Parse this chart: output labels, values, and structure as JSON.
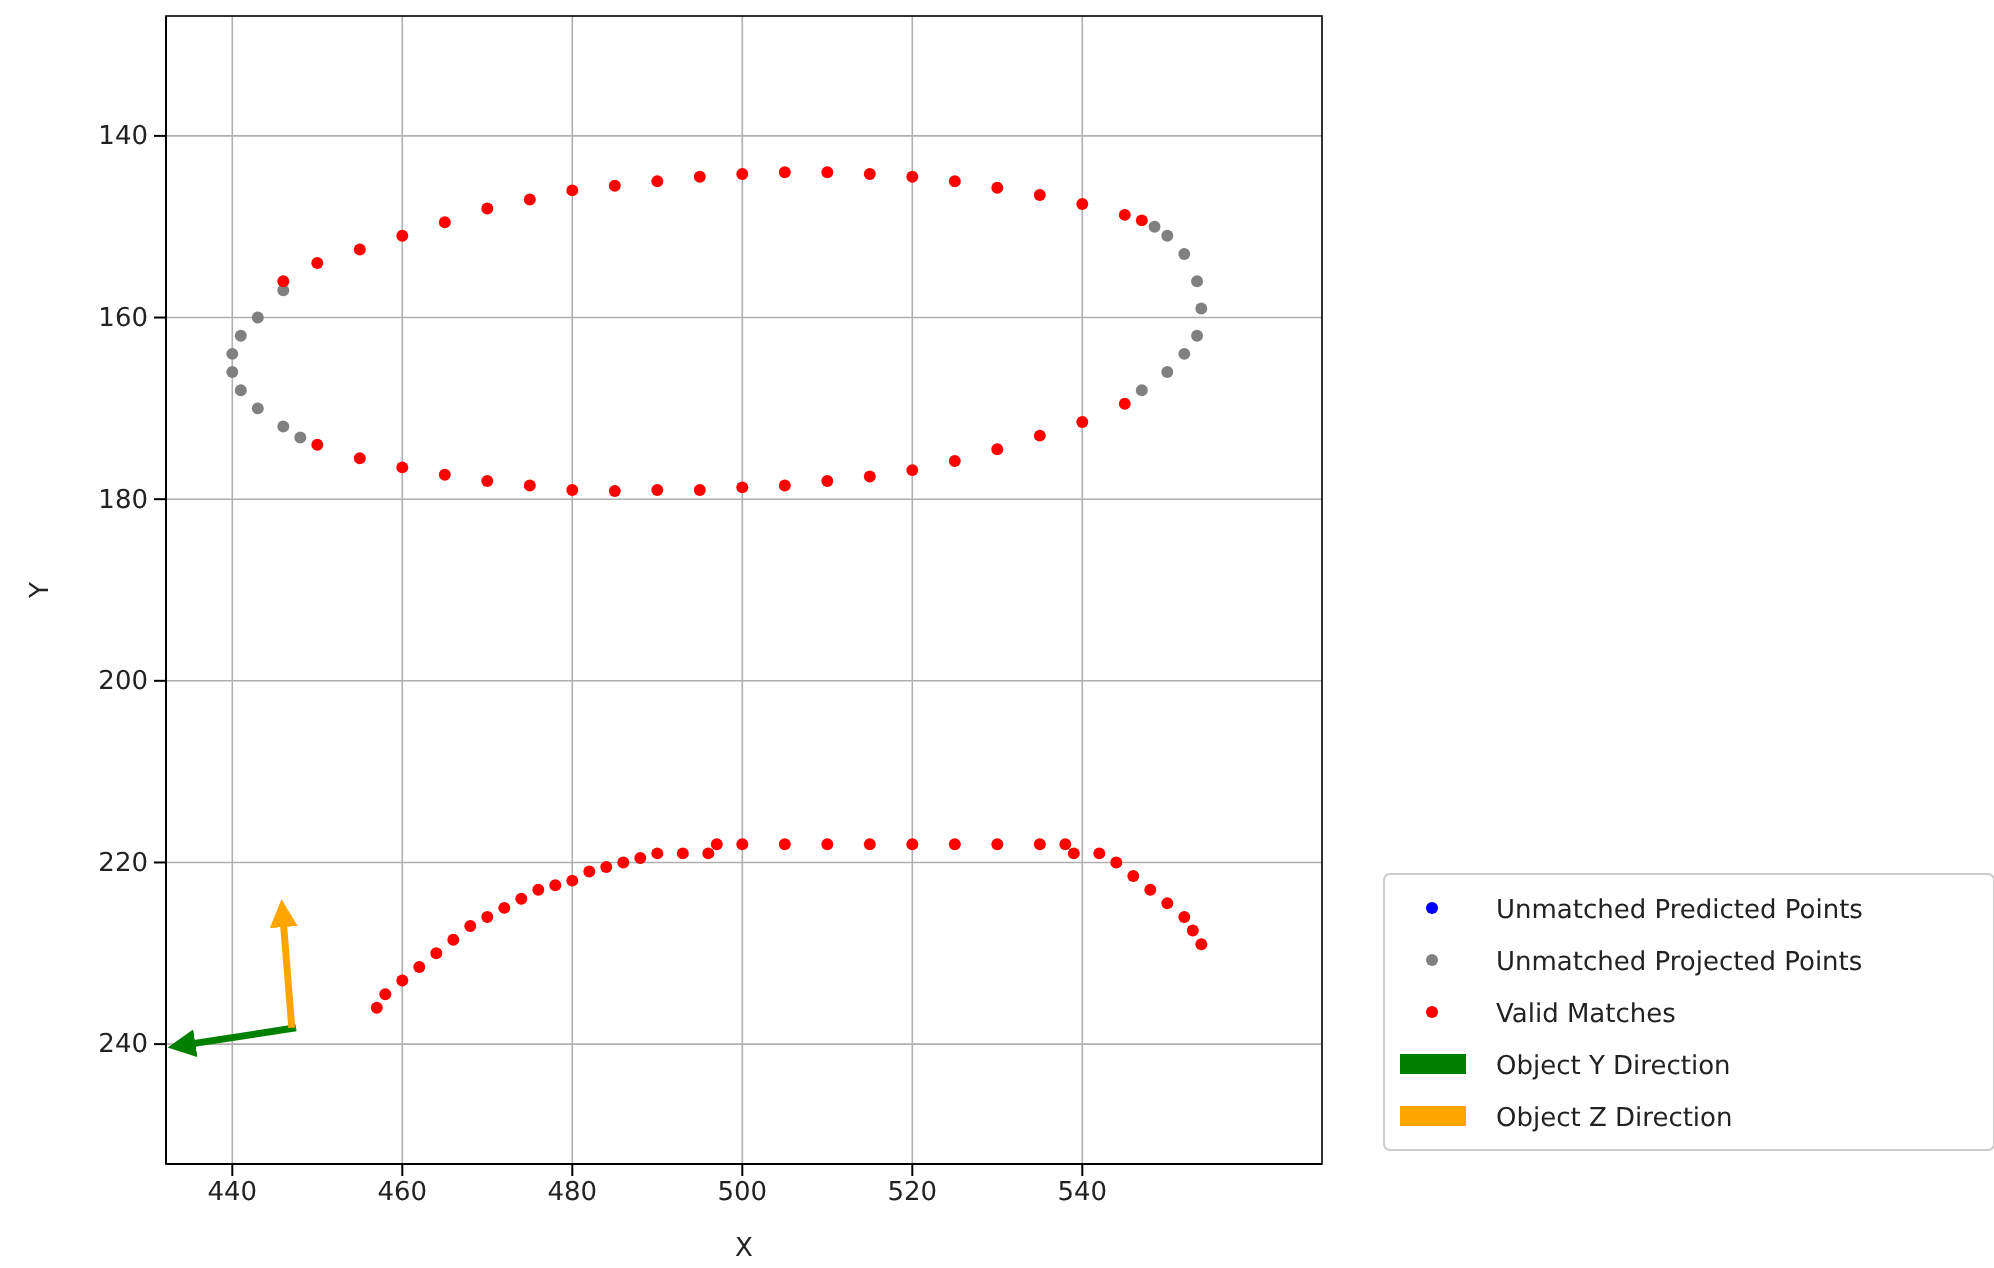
{
  "chart_data": {
    "type": "scatter",
    "xlabel": "X",
    "ylabel": "Y",
    "xlim": [
      432.2,
      568.2
    ],
    "ylim": [
      253.2,
      126.8
    ],
    "xticks": [
      440,
      460,
      480,
      500,
      520,
      540
    ],
    "yticks": [
      140,
      160,
      180,
      200,
      220,
      240
    ],
    "grid": true,
    "legend": "right",
    "marker": "circle",
    "series": [
      {
        "name": "Unmatched Predicted Points",
        "color": "#0000ff"
      },
      {
        "name": "Unmatched Projected Points",
        "color": "#808080",
        "x": [
          548.5,
          550,
          552,
          553.5,
          554,
          553.5,
          552,
          550,
          547,
          448,
          446,
          443,
          441,
          440,
          440,
          441,
          443,
          446
        ],
        "values": [
          150,
          151,
          153,
          156,
          159,
          162,
          164,
          166,
          168,
          173.2,
          172,
          170,
          168,
          166,
          164,
          162,
          160,
          157
        ]
      },
      {
        "name": "Valid Matches",
        "color": "#ff0000",
        "x": [
          446,
          450,
          455,
          460,
          465,
          470,
          475,
          480,
          485,
          490,
          495,
          500,
          505,
          510,
          515,
          520,
          525,
          530,
          535,
          540,
          545,
          547,
          545,
          540,
          535,
          530,
          525,
          520,
          515,
          510,
          505,
          500,
          495,
          490,
          485,
          480,
          475,
          470,
          465,
          460,
          455,
          450,
          457,
          458,
          460,
          462,
          464,
          466,
          468,
          470,
          472,
          474,
          476,
          478,
          480,
          482,
          484,
          486,
          488,
          490,
          493,
          496,
          497,
          500,
          505,
          510,
          515,
          520,
          525,
          530,
          535,
          538,
          539,
          542,
          544,
          546,
          548,
          550,
          552,
          553,
          554
        ],
        "values": [
          156,
          154,
          152.5,
          151,
          149.5,
          148,
          147,
          146,
          145.5,
          145,
          144.5,
          144.2,
          144,
          144,
          144.2,
          144.5,
          145,
          145.7,
          146.5,
          147.5,
          148.7,
          149.3,
          169.5,
          171.5,
          173,
          174.5,
          175.8,
          176.8,
          177.5,
          178,
          178.5,
          178.7,
          179,
          179,
          179.1,
          179,
          178.5,
          178,
          177.3,
          176.5,
          175.5,
          174,
          236,
          234.5,
          233,
          231.5,
          230,
          228.5,
          227,
          226,
          225,
          224,
          223,
          222.5,
          222,
          221,
          220.5,
          220,
          219.5,
          219,
          219,
          219,
          218,
          218,
          218,
          218,
          218,
          218,
          218,
          218,
          218,
          218,
          219,
          219,
          220,
          221.5,
          223,
          224.5,
          226,
          227.5,
          229
        ]
      },
      {
        "name": "Object Y Direction",
        "type": "line",
        "marker": "none",
        "color": "#008000",
        "x": [
          447.5,
          435
        ],
        "values": [
          238.2,
          240
        ]
      },
      {
        "name": "Object Z Direction",
        "type": "line",
        "marker": "none",
        "color": "#ffa500",
        "x": [
          447,
          446
        ],
        "values": [
          238.2,
          226.5
        ]
      }
    ]
  }
}
